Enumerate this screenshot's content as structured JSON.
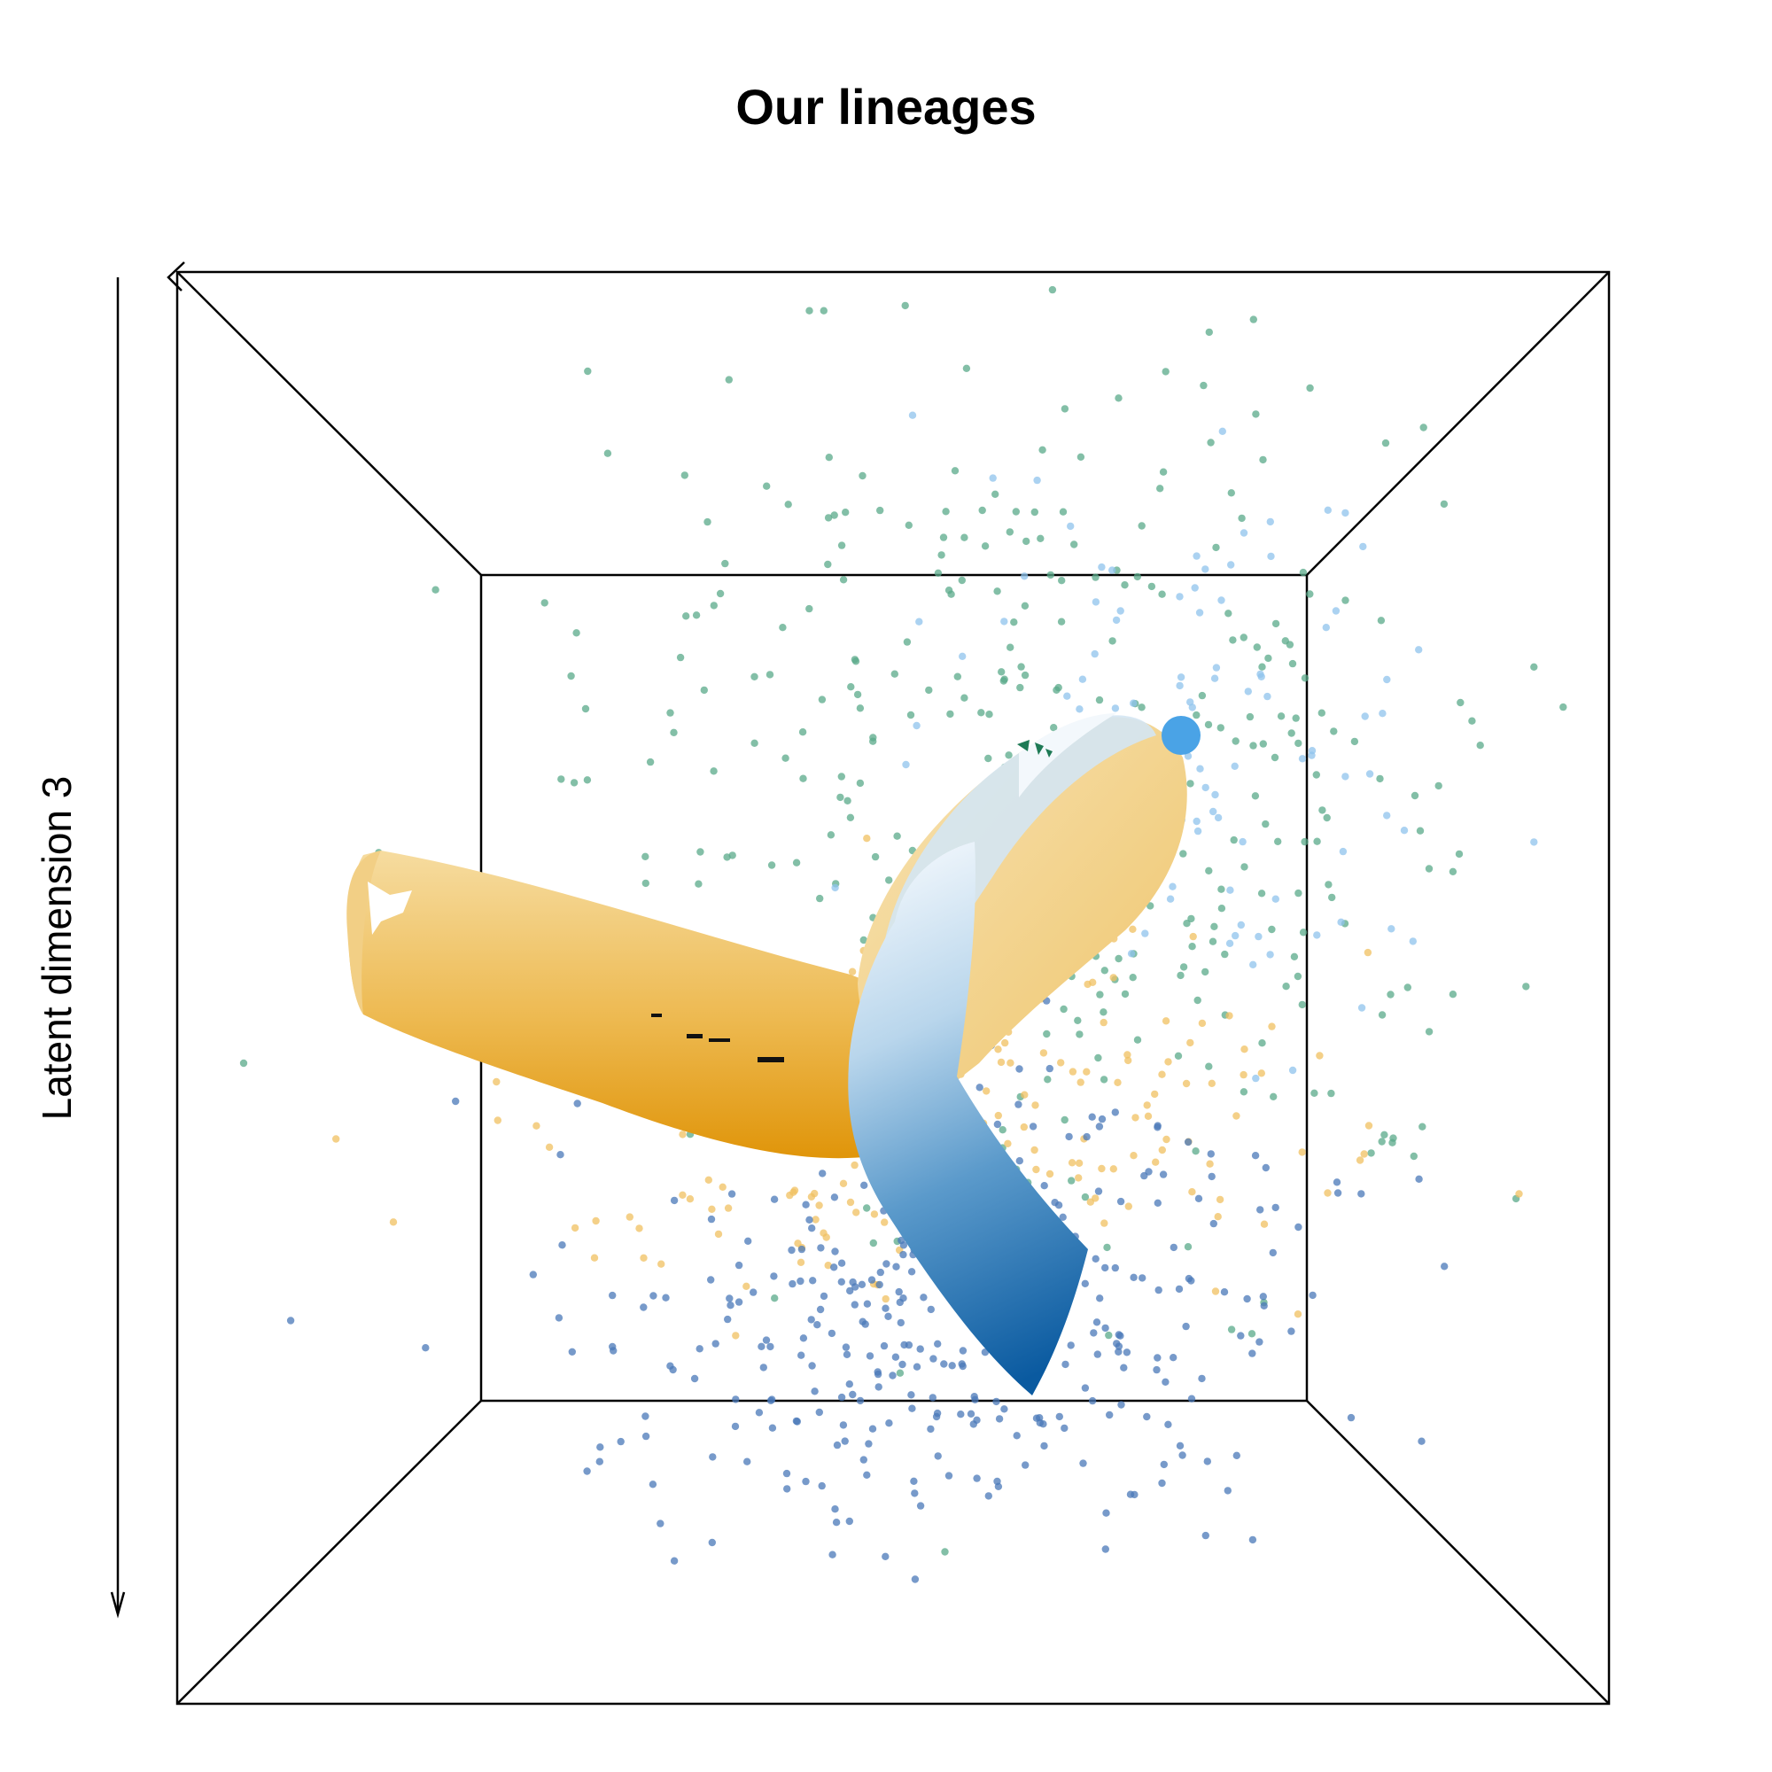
{
  "chart_data": {
    "type": "scatter",
    "subtype": "3d-scatter-with-lineage-tubes",
    "title": "Our lineages",
    "zlabel": "Latent dimension 3",
    "axes_box": "perspective cube viewed from front",
    "grid": false,
    "legend": "none",
    "series": [
      {
        "color": "#5aa98a",
        "description_points": "scattered upper region and right side",
        "count_estimate": 420
      },
      {
        "color": "#8fc3ec",
        "description_points": "upper right cluster",
        "count_estimate": 110
      },
      {
        "color": "#f0c060",
        "description_points": "lower middle cluster",
        "count_estimate": 260
      },
      {
        "color": "#4a78b8",
        "description_points": "lower region cluster",
        "count_estimate": 380
      }
    ],
    "lineages": [
      {
        "color_start": "#f6dca0",
        "color_end": "#e0950a",
        "description": "orange lineage tube extending left"
      },
      {
        "color_start": "#e8f2fa",
        "color_end": "#0a5aa0",
        "description": "blue lineage tube curving downward"
      }
    ],
    "start_marker_color": "#4aa3e6"
  }
}
